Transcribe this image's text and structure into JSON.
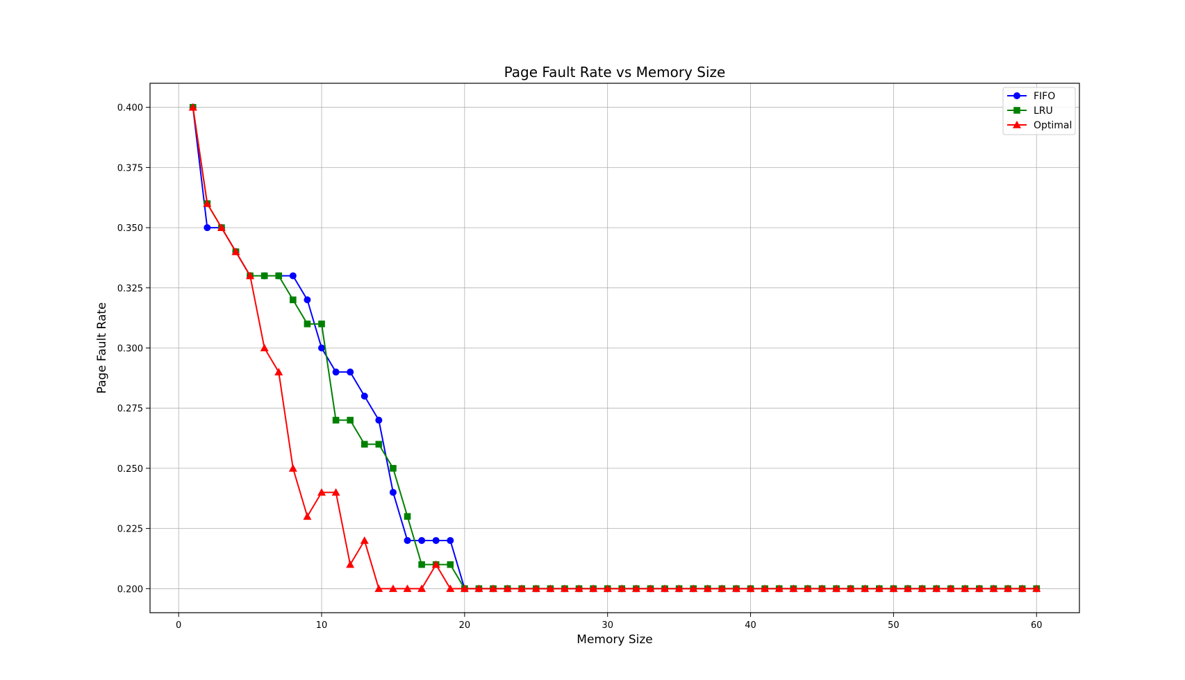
{
  "chart_data": {
    "type": "line",
    "title": "Page Fault Rate vs Memory Size",
    "xlabel": "Memory Size",
    "ylabel": "Page Fault Rate",
    "xlim": [
      -2,
      63
    ],
    "ylim": [
      0.19,
      0.41
    ],
    "xticks": [
      0,
      10,
      20,
      30,
      40,
      50,
      60
    ],
    "yticks": [
      0.2,
      0.225,
      0.25,
      0.275,
      0.3,
      0.325,
      0.35,
      0.375,
      0.4
    ],
    "ytick_labels": [
      "0.200",
      "0.225",
      "0.250",
      "0.275",
      "0.300",
      "0.325",
      "0.350",
      "0.375",
      "0.400"
    ],
    "grid": true,
    "legend_position": "top-right",
    "x": [
      1,
      2,
      3,
      4,
      5,
      6,
      7,
      8,
      9,
      10,
      11,
      12,
      13,
      14,
      15,
      16,
      17,
      18,
      19,
      20,
      21,
      22,
      23,
      24,
      25,
      26,
      27,
      28,
      29,
      30,
      31,
      32,
      33,
      34,
      35,
      36,
      37,
      38,
      39,
      40,
      41,
      42,
      43,
      44,
      45,
      46,
      47,
      48,
      49,
      50,
      51,
      52,
      53,
      54,
      55,
      56,
      57,
      58,
      59,
      60
    ],
    "series": [
      {
        "name": "FIFO",
        "color": "#0000ff",
        "marker": "circle",
        "values": [
          0.4,
          0.35,
          0.35,
          0.34,
          0.33,
          0.33,
          0.33,
          0.33,
          0.32,
          0.3,
          0.29,
          0.29,
          0.28,
          0.27,
          0.24,
          0.22,
          0.22,
          0.22,
          0.22,
          0.2,
          0.2,
          0.2,
          0.2,
          0.2,
          0.2,
          0.2,
          0.2,
          0.2,
          0.2,
          0.2,
          0.2,
          0.2,
          0.2,
          0.2,
          0.2,
          0.2,
          0.2,
          0.2,
          0.2,
          0.2,
          0.2,
          0.2,
          0.2,
          0.2,
          0.2,
          0.2,
          0.2,
          0.2,
          0.2,
          0.2,
          0.2,
          0.2,
          0.2,
          0.2,
          0.2,
          0.2,
          0.2,
          0.2,
          0.2,
          0.2
        ]
      },
      {
        "name": "LRU",
        "color": "#008000",
        "marker": "square",
        "values": [
          0.4,
          0.36,
          0.35,
          0.34,
          0.33,
          0.33,
          0.33,
          0.32,
          0.31,
          0.31,
          0.27,
          0.27,
          0.26,
          0.26,
          0.25,
          0.23,
          0.21,
          0.21,
          0.21,
          0.2,
          0.2,
          0.2,
          0.2,
          0.2,
          0.2,
          0.2,
          0.2,
          0.2,
          0.2,
          0.2,
          0.2,
          0.2,
          0.2,
          0.2,
          0.2,
          0.2,
          0.2,
          0.2,
          0.2,
          0.2,
          0.2,
          0.2,
          0.2,
          0.2,
          0.2,
          0.2,
          0.2,
          0.2,
          0.2,
          0.2,
          0.2,
          0.2,
          0.2,
          0.2,
          0.2,
          0.2,
          0.2,
          0.2,
          0.2,
          0.2
        ]
      },
      {
        "name": "Optimal",
        "color": "#ff0000",
        "marker": "triangle",
        "values": [
          0.4,
          0.36,
          0.35,
          0.34,
          0.33,
          0.3,
          0.29,
          0.25,
          0.23,
          0.24,
          0.24,
          0.21,
          0.22,
          0.2,
          0.2,
          0.2,
          0.2,
          0.21,
          0.2,
          0.2,
          0.2,
          0.2,
          0.2,
          0.2,
          0.2,
          0.2,
          0.2,
          0.2,
          0.2,
          0.2,
          0.2,
          0.2,
          0.2,
          0.2,
          0.2,
          0.2,
          0.2,
          0.2,
          0.2,
          0.2,
          0.2,
          0.2,
          0.2,
          0.2,
          0.2,
          0.2,
          0.2,
          0.2,
          0.2,
          0.2,
          0.2,
          0.2,
          0.2,
          0.2,
          0.2,
          0.2,
          0.2,
          0.2,
          0.2,
          0.2
        ]
      }
    ]
  }
}
